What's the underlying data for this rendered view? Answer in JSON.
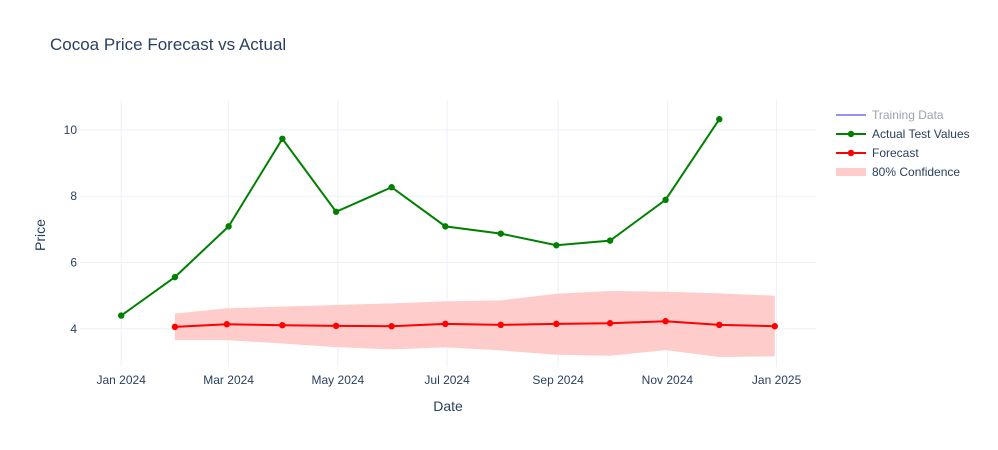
{
  "chart_data": {
    "type": "line",
    "title": "Cocoa Price Forecast vs Actual",
    "xlabel": "Date",
    "ylabel": "Price",
    "x_tick_labels": [
      "Jan 2024",
      "Mar 2024",
      "May 2024",
      "Jul 2024",
      "Sep 2024",
      "Nov 2024",
      "Jan 2025"
    ],
    "x_ticks": [
      "2024-01-01",
      "2024-03-01",
      "2024-05-01",
      "2024-07-01",
      "2024-09-01",
      "2024-11-01",
      "2025-01-01"
    ],
    "y_ticks": [
      4,
      6,
      8,
      10
    ],
    "xlim": [
      "2023-12-09",
      "2025-01-23"
    ],
    "ylim": [
      2.85,
      10.9
    ],
    "grid": true,
    "legend_position": "top-right",
    "series": [
      {
        "name": "Training Data",
        "color": "#8080f0",
        "legend_muted": true,
        "x": [],
        "y": []
      },
      {
        "name": "Actual Test Values",
        "color": "#008000",
        "x": [
          "2024-01-01",
          "2024-01-31",
          "2024-03-01",
          "2024-03-31",
          "2024-04-30",
          "2024-05-31",
          "2024-06-30",
          "2024-07-31",
          "2024-08-31",
          "2024-09-30",
          "2024-10-31",
          "2024-11-30"
        ],
        "y": [
          4.4,
          5.56,
          7.09,
          9.73,
          7.53,
          8.27,
          7.09,
          6.87,
          6.52,
          6.66,
          7.89,
          10.32
        ]
      },
      {
        "name": "Forecast",
        "color": "#ff0000",
        "x": [
          "2024-01-31",
          "2024-02-29",
          "2024-03-31",
          "2024-04-30",
          "2024-05-31",
          "2024-06-30",
          "2024-07-31",
          "2024-08-31",
          "2024-09-30",
          "2024-10-31",
          "2024-11-30",
          "2024-12-31"
        ],
        "y": [
          4.06,
          4.14,
          4.11,
          4.09,
          4.08,
          4.15,
          4.12,
          4.15,
          4.17,
          4.23,
          4.12,
          4.08
        ]
      }
    ],
    "confidence_band": {
      "name": "80% Confidence",
      "color": "#ffcccc",
      "x": [
        "2024-01-31",
        "2024-02-29",
        "2024-03-31",
        "2024-04-30",
        "2024-05-31",
        "2024-06-30",
        "2024-07-31",
        "2024-08-31",
        "2024-09-30",
        "2024-10-31",
        "2024-11-30",
        "2024-12-31"
      ],
      "lower": [
        3.66,
        3.66,
        3.56,
        3.45,
        3.38,
        3.44,
        3.35,
        3.22,
        3.19,
        3.36,
        3.15,
        3.17
      ],
      "upper": [
        4.46,
        4.62,
        4.67,
        4.72,
        4.77,
        4.83,
        4.86,
        5.06,
        5.14,
        5.12,
        5.07,
        5.0
      ]
    }
  }
}
